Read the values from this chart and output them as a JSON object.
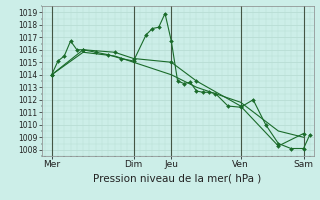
{
  "background_color": "#cceee8",
  "plot_bg": "#cceee8",
  "grid_color": "#aaddcc",
  "line_color": "#1a6b2a",
  "vline_color": "#336644",
  "title": "Pression niveau de la mer( hPa )",
  "ylim": [
    1007.5,
    1019.5
  ],
  "yticks": [
    1008,
    1009,
    1010,
    1011,
    1012,
    1013,
    1014,
    1015,
    1016,
    1017,
    1018,
    1019
  ],
  "xlim": [
    -0.3,
    21.3
  ],
  "xtick_labels": [
    "Mer",
    "Dim",
    "Jeu",
    "Ven",
    "Sam"
  ],
  "xtick_positions": [
    0.5,
    7.0,
    10.0,
    15.5,
    20.5
  ],
  "vlines": [
    0.5,
    7.0,
    10.0,
    15.5,
    20.5
  ],
  "series1_x": [
    0.5,
    1.0,
    1.5,
    2.0,
    2.5,
    3.0,
    4.0,
    5.0,
    6.0,
    7.0,
    8.0,
    8.5,
    9.0,
    9.5,
    10.0,
    10.5,
    11.0,
    11.5,
    12.0,
    12.5,
    13.0,
    13.5,
    14.5,
    15.5,
    16.5,
    17.5,
    18.5,
    19.5,
    20.5,
    21.0
  ],
  "series1_y": [
    1014.0,
    1015.1,
    1015.5,
    1016.7,
    1016.0,
    1016.0,
    1015.8,
    1015.6,
    1015.3,
    1015.1,
    1017.2,
    1017.7,
    1017.8,
    1018.9,
    1016.7,
    1013.5,
    1013.3,
    1013.4,
    1012.7,
    1012.6,
    1012.6,
    1012.5,
    1011.5,
    1011.4,
    1012.0,
    1010.0,
    1008.5,
    1008.1,
    1008.1,
    1009.2
  ],
  "series2_x": [
    0.5,
    3.0,
    5.5,
    7.0,
    10.0,
    12.0,
    15.5,
    18.5,
    20.5
  ],
  "series2_y": [
    1014.0,
    1016.0,
    1015.8,
    1015.3,
    1015.0,
    1013.5,
    1011.5,
    1008.3,
    1009.3
  ],
  "series3_x": [
    0.5,
    3.0,
    5.5,
    7.0,
    10.0,
    12.0,
    15.5,
    18.5,
    20.5
  ],
  "series3_y": [
    1014.0,
    1015.8,
    1015.5,
    1015.0,
    1014.0,
    1013.0,
    1011.8,
    1009.5,
    1009.0
  ]
}
